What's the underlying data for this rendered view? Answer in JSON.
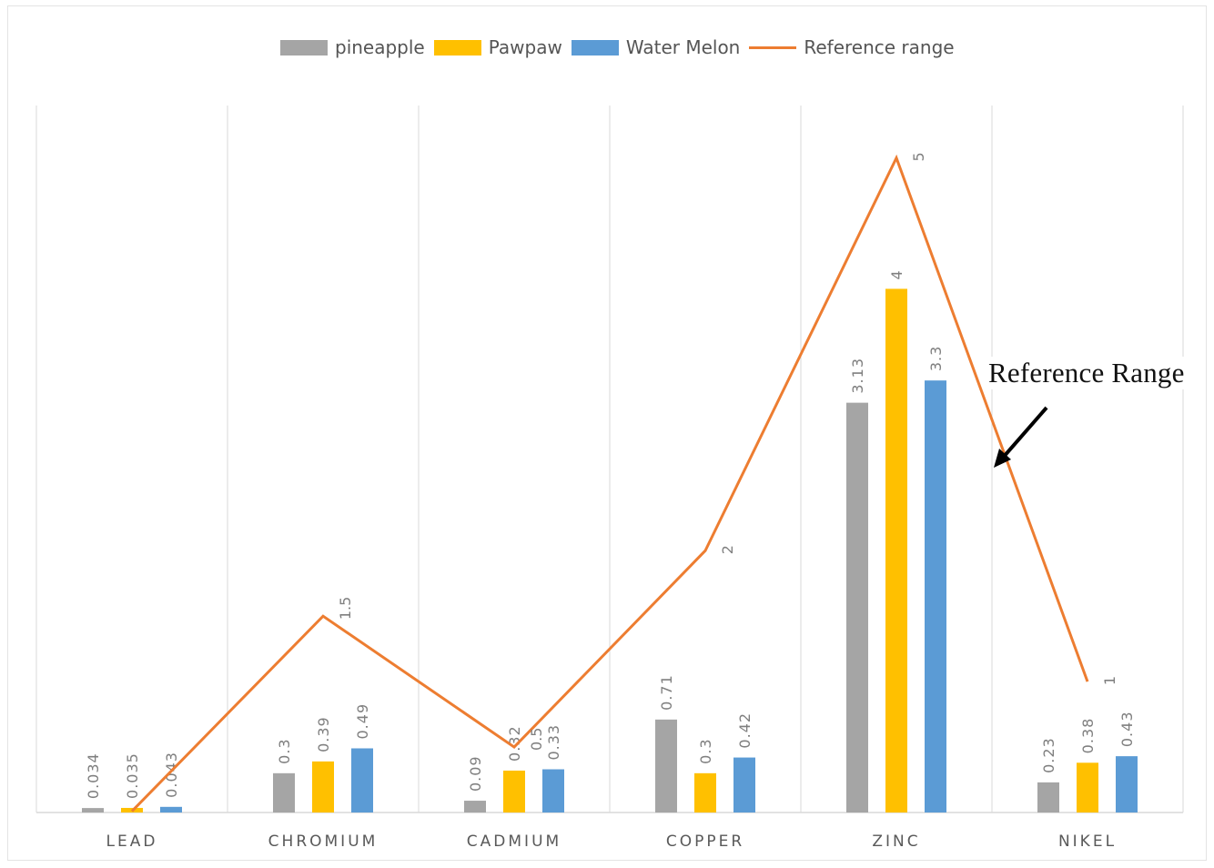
{
  "chart_data": {
    "type": "bar",
    "categories": [
      "LEAD",
      "CHROMIUM",
      "CADMIUM",
      "COPPER",
      "ZINC",
      "NIKEL"
    ],
    "series": [
      {
        "name": "pineapple",
        "kind": "bar",
        "color": "#a5a5a5",
        "values": [
          0.034,
          0.3,
          0.09,
          0.71,
          3.13,
          0.23
        ],
        "labels": [
          "0.034",
          "0.3",
          "0.09",
          "0.71",
          "3.13",
          "0.23"
        ]
      },
      {
        "name": "Pawpaw",
        "kind": "bar",
        "color": "#ffc000",
        "values": [
          0.035,
          0.39,
          0.32,
          0.3,
          4,
          0.38
        ],
        "labels": [
          "0.035",
          "0.39",
          "0.32",
          "0.3",
          "4",
          "0.38"
        ]
      },
      {
        "name": "Water Melon",
        "kind": "bar",
        "color": "#5b9bd5",
        "values": [
          0.043,
          0.49,
          0.33,
          0.42,
          3.3,
          0.43
        ],
        "labels": [
          "0.043",
          "0.49",
          "0.33",
          "0.42",
          "3.3",
          "0.43"
        ]
      },
      {
        "name": "Reference range",
        "kind": "line",
        "color": "#ed7d31",
        "values": [
          0.01,
          1.5,
          0.5,
          2,
          5,
          1
        ],
        "labels": [
          "0.01",
          "1.5",
          "0.5",
          "2",
          "5",
          "1"
        ]
      }
    ],
    "ylim": [
      0,
      5.4
    ],
    "grid": "vertical category separators",
    "legend_position": "top",
    "annotation": "Reference Range"
  }
}
